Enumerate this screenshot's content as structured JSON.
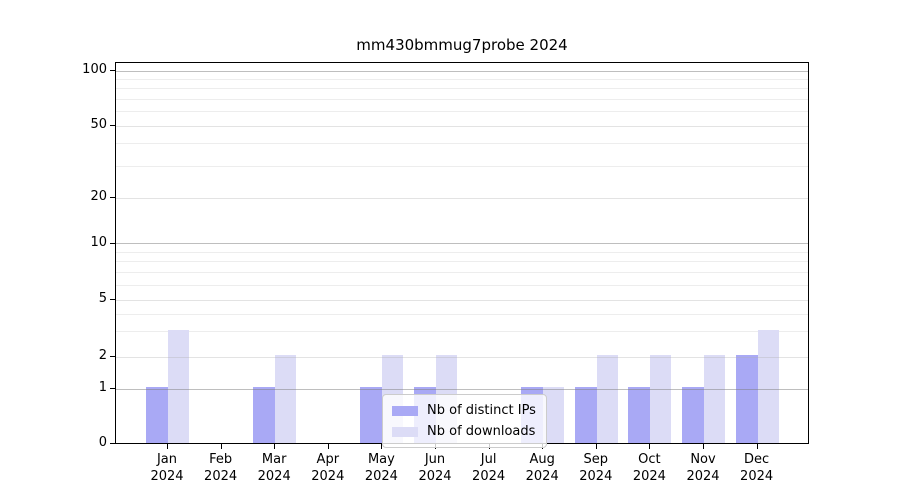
{
  "chart_data": {
    "type": "bar",
    "title": "mm430bmmug7probe 2024",
    "categories": [
      "Jan",
      "Feb",
      "Mar",
      "Apr",
      "May",
      "Jun",
      "Jul",
      "Aug",
      "Sep",
      "Oct",
      "Nov",
      "Dec"
    ],
    "year_label": "2024",
    "series": [
      {
        "name": "Nb of distinct IPs",
        "color": "#a9a9f5",
        "values": [
          1,
          0,
          1,
          0,
          1,
          1,
          0,
          1,
          1,
          1,
          1,
          2
        ]
      },
      {
        "name": "Nb of downloads",
        "color": "#dcdcf6",
        "values": [
          3,
          0,
          2,
          0,
          2,
          2,
          0,
          1,
          2,
          2,
          2,
          3
        ]
      }
    ],
    "xlabel": "",
    "ylabel": "",
    "y_axis": {
      "ticks": [
        0,
        1,
        2,
        5,
        10,
        20,
        50,
        100
      ],
      "decade_gridlines": [
        1,
        10,
        100
      ],
      "major_gridlines": [
        2,
        5,
        20,
        50
      ],
      "minor_gridlines": [
        3,
        4,
        6,
        7,
        8,
        9,
        30,
        40,
        60,
        70,
        80,
        90
      ],
      "scale_anchors": [
        [
          0,
          0.998
        ],
        [
          1,
          0.854
        ],
        [
          2,
          0.77
        ],
        [
          5,
          0.621
        ],
        [
          10,
          0.473
        ],
        [
          20,
          0.354
        ],
        [
          50,
          0.166
        ],
        [
          100,
          0.021
        ]
      ]
    },
    "legend": {
      "position": "lower-center",
      "frame_alpha": 0.8
    },
    "grid": true
  }
}
